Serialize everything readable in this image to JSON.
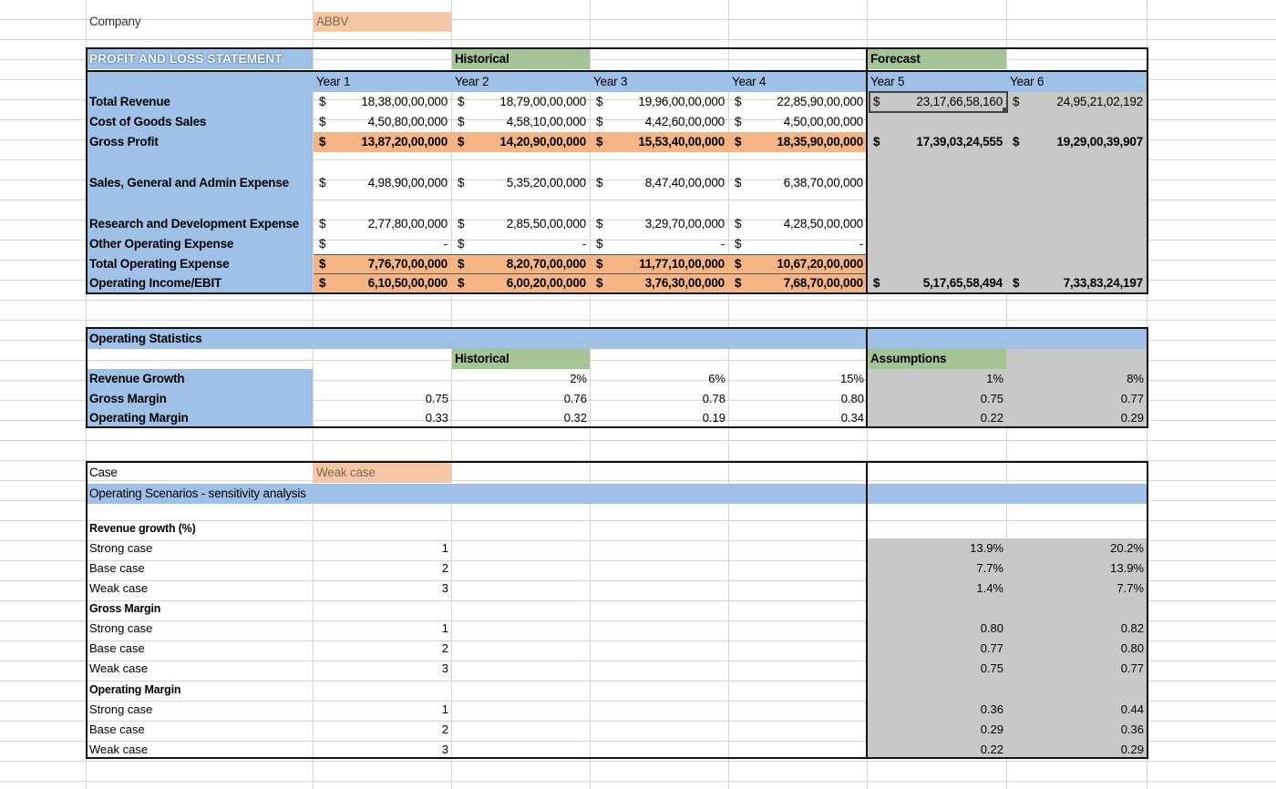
{
  "company": {
    "label": "Company",
    "value": "ABBV"
  },
  "pnl": {
    "title": "PROFIT AND LOSS STATEMENT",
    "historical_label": "Historical",
    "forecast_label": "Forecast",
    "years": [
      "Year 1",
      "Year 2",
      "Year 3",
      "Year 4",
      "Year 5",
      "Year 6"
    ],
    "currency": "$",
    "rows": {
      "total_revenue": {
        "label": "Total Revenue",
        "values": [
          "18,38,00,00,000",
          "18,79,00,00,000",
          "19,96,00,00,000",
          "22,85,90,00,000",
          "23,17,66,58,160",
          "24,95,21,02,192"
        ]
      },
      "cogs": {
        "label": "Cost of Goods Sales",
        "values": [
          "4,50,80,00,000",
          "4,58,10,00,000",
          "4,42,60,00,000",
          "4,50,00,00,000"
        ]
      },
      "gross_profit": {
        "label": "Gross Profit",
        "values": [
          "13,87,20,00,000",
          "14,20,90,00,000",
          "15,53,40,00,000",
          "18,35,90,00,000",
          "17,39,03,24,555",
          "19,29,00,39,907"
        ]
      },
      "sga": {
        "label": "Sales, General and Admin Expense",
        "values": [
          "4,98,90,00,000",
          "5,35,20,00,000",
          "8,47,40,00,000",
          "6,38,70,00,000"
        ]
      },
      "rnd": {
        "label": "Research and Development Expense",
        "values": [
          "2,77,80,00,000",
          "2,85,50,00,000",
          "3,29,70,00,000",
          "4,28,50,00,000"
        ]
      },
      "other_opex": {
        "label": "Other Operating Expense",
        "values": [
          "-",
          "-",
          "-",
          "-"
        ]
      },
      "total_opex": {
        "label": "Total Operating Expense",
        "values": [
          "7,76,70,00,000",
          "8,20,70,00,000",
          "11,77,10,00,000",
          "10,67,20,00,000"
        ]
      },
      "ebit": {
        "label": "Operating Income/EBIT",
        "values": [
          "6,10,50,00,000",
          "6,00,20,00,000",
          "3,76,30,00,000",
          "7,68,70,00,000",
          "5,17,65,58,494",
          "7,33,83,24,197"
        ]
      }
    }
  },
  "stats": {
    "title": "Operating Statistics",
    "historical_label": "Historical",
    "assumptions_label": "Assumptions",
    "revenue_growth": {
      "label": "Revenue Growth",
      "values": [
        "",
        "2%",
        "6%",
        "15%",
        "1%",
        "8%"
      ]
    },
    "gross_margin": {
      "label": "Gross Margin",
      "values": [
        "0.75",
        "0.76",
        "0.78",
        "0.80",
        "0.75",
        "0.77"
      ]
    },
    "operating_margin": {
      "label": "Operating Margin",
      "values": [
        "0.33",
        "0.32",
        "0.19",
        "0.34",
        "0.22",
        "0.29"
      ]
    }
  },
  "scenarios": {
    "case_label": "Case",
    "case_value": "Weak case",
    "title": "Operating Scenarios - sensitivity analysis",
    "groups": [
      {
        "title": "Revenue growth (%)",
        "rows": [
          {
            "label": "Strong case",
            "num": "1",
            "y5": "13.9%",
            "y6": "20.2%"
          },
          {
            "label": "Base case",
            "num": "2",
            "y5": "7.7%",
            "y6": "13.9%"
          },
          {
            "label": "Weak case",
            "num": "3",
            "y5": "1.4%",
            "y6": "7.7%"
          }
        ]
      },
      {
        "title": "Gross Margin",
        "rows": [
          {
            "label": "Strong case",
            "num": "1",
            "y5": "0.80",
            "y6": "0.82"
          },
          {
            "label": "Base case",
            "num": "2",
            "y5": "0.77",
            "y6": "0.80"
          },
          {
            "label": "Weak case",
            "num": "3",
            "y5": "0.75",
            "y6": "0.77"
          }
        ]
      },
      {
        "title": "Operating Margin",
        "rows": [
          {
            "label": "Strong case",
            "num": "1",
            "y5": "0.36",
            "y6": "0.44"
          },
          {
            "label": "Base case",
            "num": "2",
            "y5": "0.29",
            "y6": "0.36"
          },
          {
            "label": "Weak case",
            "num": "3",
            "y5": "0.22",
            "y6": "0.29"
          }
        ]
      }
    ]
  }
}
